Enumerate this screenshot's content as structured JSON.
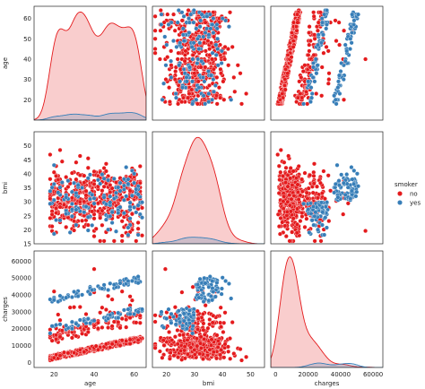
{
  "chart_data": {
    "type": "scatter",
    "kind": "pairplot",
    "variables": [
      "age",
      "bmi",
      "charges"
    ],
    "hue": "smoker",
    "legend": {
      "title": "smoker",
      "placement": "right",
      "entries": [
        {
          "label": "no",
          "color": "#e41a1c"
        },
        {
          "label": "yes",
          "color": "#377eb8"
        }
      ]
    },
    "grid": false,
    "axes": {
      "age": {
        "label": "age",
        "lim": [
          10,
          66
        ],
        "ticks": [
          20,
          30,
          40,
          50,
          60
        ],
        "diag_ticks": [
          20,
          40,
          60,
          80
        ]
      },
      "bmi": {
        "label": "bmi",
        "lim": [
          15,
          55
        ],
        "ticks": [
          15,
          20,
          25,
          30,
          35,
          40,
          45,
          50
        ],
        "diag_ticks": [
          10,
          20,
          30,
          40,
          50,
          60
        ]
      },
      "charges": {
        "label": "charges",
        "lim": [
          -3000,
          66000
        ],
        "ticks": [
          0,
          10000,
          20000,
          30000,
          40000,
          50000,
          60000
        ],
        "diag_ticks": [
          0,
          20000,
          40000,
          60000
        ]
      }
    },
    "series": [
      {
        "name": "no",
        "color": "#e41a1c",
        "fill": "rgba(228,26,28,0.22)"
      },
      {
        "name": "yes",
        "color": "#377eb8",
        "fill": "rgba(55,126,184,0.22)"
      }
    ]
  }
}
